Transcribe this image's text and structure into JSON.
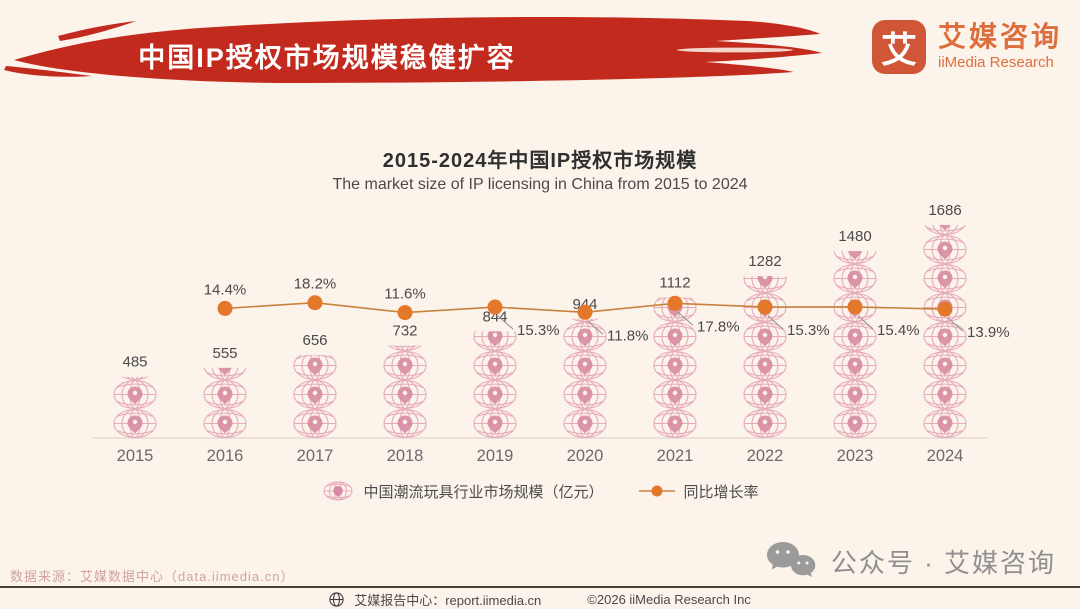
{
  "header": {
    "banner_title": "中国IP授权市场规模稳健扩容",
    "banner_color": "#c32a1e"
  },
  "logo": {
    "mark": "艾",
    "name_cn": "艾媒咨询",
    "name_en": "iiMedia Research",
    "accent_color": "#dd6f3e"
  },
  "chart_header": {
    "title": "2015-2024年中国IP授权市场规模",
    "subtitle": "The market size of IP licensing in China from 2015 to 2024"
  },
  "chart_data": {
    "type": "bar",
    "subtype": "pictograph-bars-with-growth-line",
    "title": "2015-2024年中国IP授权市场规模",
    "categories": [
      "2015",
      "2016",
      "2017",
      "2018",
      "2019",
      "2020",
      "2021",
      "2022",
      "2023",
      "2024"
    ],
    "series": [
      {
        "name": "中国潮流玩具行业市场规模（亿元）",
        "type": "pictograph-bar",
        "values": [
          485,
          555,
          656,
          732,
          844,
          944,
          1112,
          1282,
          1480,
          1686
        ]
      },
      {
        "name": "同比增长率",
        "type": "line",
        "values_percent": [
          null,
          14.4,
          18.2,
          11.6,
          15.3,
          11.8,
          17.8,
          15.3,
          15.4,
          13.9
        ]
      }
    ],
    "xlabel": "",
    "ylabel": "",
    "grid": false,
    "legend_position": "bottom",
    "colors": {
      "bar_icon": "#e6aab9",
      "bar_pin": "#d78ba2",
      "line": "#c8823e",
      "dot": "#e3772a",
      "label": "#4a4a4a",
      "year": "#6a6a6a",
      "axis": "#e8dacf",
      "leader": "#909090",
      "background": "#fcf3eb"
    }
  },
  "legend": {
    "bar_label": "中国潮流玩具行业市场规模（亿元）",
    "line_label": "同比增长率"
  },
  "source": {
    "text": "数据来源：艾媒数据中心（data.iimedia.cn）"
  },
  "footer": {
    "report_center": "艾媒报告中心：report.iimedia.cn",
    "copyright": "©2026  iiMedia Research Inc"
  },
  "watermark": {
    "text": "公众号 · 艾媒咨询"
  }
}
